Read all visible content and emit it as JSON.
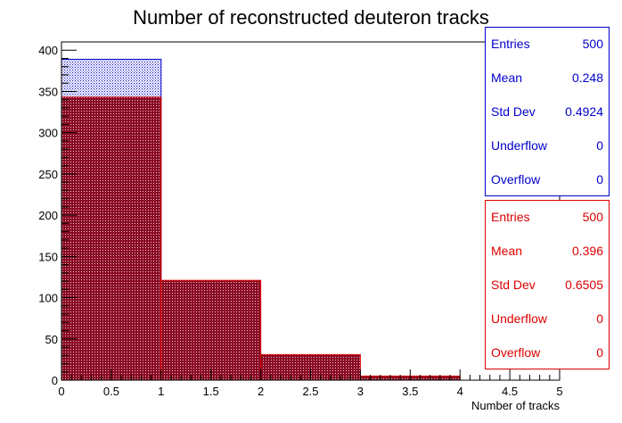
{
  "chart_data": {
    "type": "bar",
    "title": "Number of reconstructed deuteron tracks",
    "xlabel": "Number of tracks",
    "ylabel": "",
    "xlim": [
      0,
      5
    ],
    "ylim": [
      0,
      410
    ],
    "bin_edges": [
      0,
      1,
      2,
      3,
      4,
      5
    ],
    "x_ticks": [
      "0",
      "0.5",
      "1",
      "1.5",
      "2",
      "2.5",
      "3",
      "3.5",
      "4",
      "4.5",
      "5"
    ],
    "y_ticks": [
      "0",
      "50",
      "100",
      "150",
      "200",
      "250",
      "300",
      "350",
      "400"
    ],
    "grid": false,
    "series": [
      {
        "values": [
          389,
          99,
          11,
          1,
          0
        ],
        "color": "#0000cc",
        "stats": {
          "Entries": "500",
          "Mean": "0.248",
          "Std Dev": "0.4924",
          "Underflow": "0",
          "Overflow": "0"
        }
      },
      {
        "values": [
          343,
          121,
          31,
          5,
          0
        ],
        "color": "#dd0000",
        "stats": {
          "Entries": "500",
          "Mean": "0.396",
          "Std Dev": "0.6505",
          "Underflow": "0",
          "Overflow": "0"
        }
      }
    ]
  }
}
